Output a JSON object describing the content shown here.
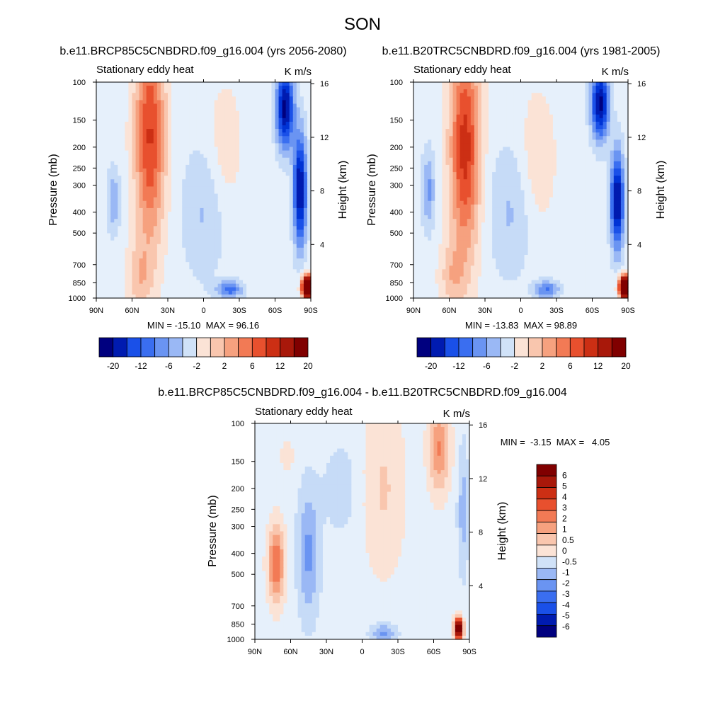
{
  "figure": {
    "title": "SON"
  },
  "chart_data": [
    {
      "type": "heatmap",
      "title": "b.e11.BRCP85C5CNBDRD.f09_g16.004 (yrs 2056-2080)",
      "left_label": "Stationary eddy heat",
      "right_label": "K m/s",
      "ylabel": "Pressure (mb)",
      "ylabel_right": "Height (km)",
      "x_ticks": [
        "90N",
        "60N",
        "30N",
        "0",
        "30S",
        "60S",
        "90S"
      ],
      "y_ticks": [
        "100",
        "150",
        "200",
        "250",
        "300",
        "400",
        "500",
        "700",
        "850",
        "1000"
      ],
      "y2_ticks": [
        "16",
        "12",
        "8",
        "4"
      ],
      "stats": "MIN = -15.10  MAX = 96.16",
      "min": -15.1,
      "max": 96.16,
      "colorbar": {
        "orientation": "horizontal",
        "labels": [
          "-20",
          "-12",
          "-6",
          "-2",
          "2",
          "6",
          "12",
          "20"
        ]
      }
    },
    {
      "type": "heatmap",
      "title": "b.e11.B20TRC5CNBDRD.f09_g16.004 (yrs 1981-2005)",
      "left_label": "Stationary eddy heat",
      "right_label": "K m/s",
      "ylabel": "Pressure (mb)",
      "ylabel_right": "Height (km)",
      "x_ticks": [
        "90N",
        "60N",
        "30N",
        "0",
        "30S",
        "60S",
        "90S"
      ],
      "y_ticks": [
        "100",
        "150",
        "200",
        "250",
        "300",
        "400",
        "500",
        "700",
        "850",
        "1000"
      ],
      "y2_ticks": [
        "16",
        "12",
        "8",
        "4"
      ],
      "stats": "MIN = -13.83  MAX = 98.89",
      "min": -13.83,
      "max": 98.89,
      "colorbar": {
        "orientation": "horizontal",
        "labels": [
          "-20",
          "-12",
          "-6",
          "-2",
          "2",
          "6",
          "12",
          "20"
        ]
      }
    },
    {
      "type": "heatmap",
      "title": "b.e11.BRCP85C5CNBDRD.f09_g16.004 - b.e11.B20TRC5CNBDRD.f09_g16.004",
      "left_label": "Stationary eddy heat",
      "right_label": "K m/s",
      "ylabel": "Pressure (mb)",
      "ylabel_right": "Height (km)",
      "x_ticks": [
        "90N",
        "60N",
        "30N",
        "0",
        "30S",
        "60S",
        "90S"
      ],
      "y_ticks": [
        "100",
        "150",
        "200",
        "250",
        "300",
        "400",
        "500",
        "700",
        "850",
        "1000"
      ],
      "y2_ticks": [
        "16",
        "12",
        "8",
        "4"
      ],
      "stats": "MIN =  -3.15  MAX =   4.05",
      "min": -3.15,
      "max": 4.05,
      "colorbar": {
        "orientation": "vertical",
        "labels": [
          "6",
          "5",
          "4",
          "3",
          "2",
          "1",
          "0.5",
          "0",
          "-0.5",
          "-1",
          "-2",
          "-3",
          "-4",
          "-5",
          "-6"
        ]
      }
    }
  ],
  "colors": {
    "palette": [
      "#00007f",
      "#001bb0",
      "#0033d5",
      "#1a50e8",
      "#3a6ef0",
      "#6a94f2",
      "#9ab8f5",
      "#c6dbf7",
      "#e6f0fb",
      "#fbe3d6",
      "#f9c6ae",
      "#f6a17f",
      "#f27a55",
      "#e8502e",
      "#cc2f14",
      "#a8180a",
      "#800000"
    ],
    "colorbar_ramp": [
      "#00007f",
      "#001bb0",
      "#1a50e8",
      "#3a6ef0",
      "#6a94f2",
      "#9ab8f5",
      "#d0e2f8",
      "#fbe3d6",
      "#f9c6ae",
      "#f6a17f",
      "#f27a55",
      "#e8502e",
      "#cc2f14",
      "#a8180a",
      "#800000"
    ]
  }
}
